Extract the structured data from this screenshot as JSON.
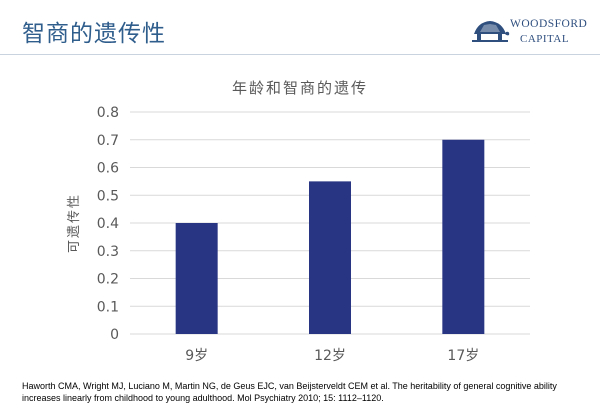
{
  "slide": {
    "title": "智商的遗传性",
    "logo": {
      "name": "WOODSFORD",
      "sub": "CAPITAL",
      "icon": "turtle-icon"
    },
    "citation": "Haworth CMA, Wright MJ, Luciano M, Martin NG, de Geus EJC, van Beijsterveldt CEM et al. The heritability of general cognitive ability increases linearly from childhood to young adulthood. Mol Psychiatry 2010; 15: 1112–1120."
  },
  "colors": {
    "bar": "#283583",
    "title": "#2f5d8c",
    "grid": "#d9d9d9",
    "axis_text": "#595959"
  },
  "chart_data": {
    "type": "bar",
    "title": "年龄和智商的遗传",
    "xlabel": "",
    "ylabel": "可遗传性",
    "categories": [
      "9岁",
      "12岁",
      "17岁"
    ],
    "values": [
      0.4,
      0.55,
      0.7
    ],
    "ylim": [
      0,
      0.8
    ],
    "yticks": [
      "0",
      "0.1",
      "0.2",
      "0.3",
      "0.4",
      "0.5",
      "0.6",
      "0.7",
      "0.8"
    ],
    "grid": true,
    "legend": "none"
  }
}
